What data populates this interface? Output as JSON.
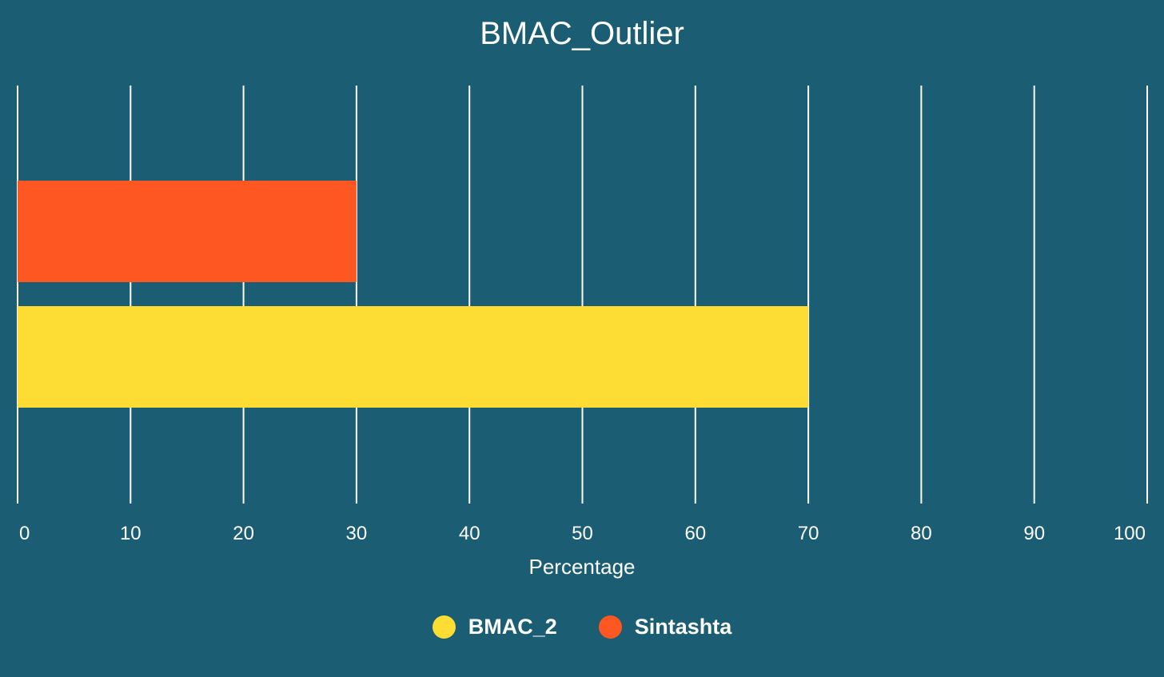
{
  "chart_data": {
    "type": "bar",
    "orientation": "horizontal",
    "title": "BMAC_Outlier",
    "xlabel": "Percentage",
    "ylabel": "",
    "xlim": [
      0,
      100
    ],
    "x_ticks": [
      "0",
      "10",
      "20",
      "30",
      "40",
      "50",
      "60",
      "70",
      "80",
      "90",
      "100"
    ],
    "grid": true,
    "legend_position": "bottom-center",
    "series": [
      {
        "name": "Sintashta",
        "value": 30,
        "color": "#ff5722"
      },
      {
        "name": "BMAC_2",
        "value": 70,
        "color": "#fddc34"
      }
    ],
    "legend": [
      {
        "label": "BMAC_2",
        "color": "#fddc34"
      },
      {
        "label": "Sintashta",
        "color": "#ff5722"
      }
    ],
    "background_color": "#1b5e73",
    "gridline_color": "#ffffff"
  }
}
